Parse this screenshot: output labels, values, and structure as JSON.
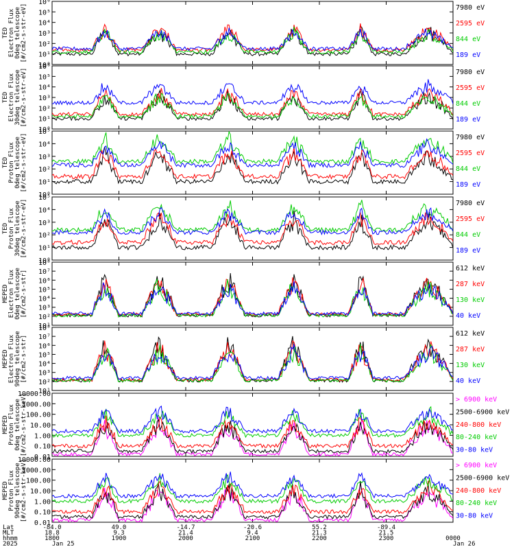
{
  "colors": {
    "blue": "#0000ff",
    "red": "#ff0000",
    "green": "#00cc00",
    "black": "#000000",
    "magenta": "#ff00ff"
  },
  "chart_data": [
    {
      "type": "line",
      "ylabel": [
        "TED",
        "Electron Flux",
        "0deg telescope",
        "[#/cm2-s-str-eV]"
      ],
      "log_y": true,
      "ylim": [
        1,
        1000000
      ],
      "tick_labels": [
        "10⁰",
        "10¹",
        "10²",
        "10³",
        "10⁴",
        "10⁵",
        "10⁶"
      ],
      "series": [
        {
          "name": "7980 eV",
          "color": "black",
          "level": 1
        },
        {
          "name": "2595 eV",
          "color": "red",
          "level": 1.4
        },
        {
          "name": "844 eV",
          "color": "green",
          "level": 1.2
        },
        {
          "name": "189 eV",
          "color": "blue",
          "level": 1.5
        }
      ]
    },
    {
      "type": "line",
      "ylabel": [
        "TED",
        "Electron Flux",
        "30deg telescope",
        "[#/cm2-s-str-eV]"
      ],
      "log_y": true,
      "ylim": [
        1,
        1000000
      ],
      "tick_labels": [
        "10⁰",
        "10¹",
        "10²",
        "10³",
        "10⁴",
        "10⁵",
        "10⁶"
      ],
      "series": [
        {
          "name": "7980 eV",
          "color": "black",
          "level": 1
        },
        {
          "name": "2595 eV",
          "color": "red",
          "level": 1.4
        },
        {
          "name": "844 eV",
          "color": "green",
          "level": 1.2
        },
        {
          "name": "189 eV",
          "color": "blue",
          "level": 2.5
        }
      ]
    },
    {
      "type": "line",
      "ylabel": [
        "TED",
        "Proton Flux",
        "0deg telescope",
        "[#/cm2-s-str-eV]"
      ],
      "log_y": true,
      "ylim": [
        1,
        100000
      ],
      "tick_labels": [
        "10⁰",
        "10¹",
        "10²",
        "10³",
        "10⁴",
        "10⁵"
      ],
      "series": [
        {
          "name": "7980 eV",
          "color": "black",
          "level": 1
        },
        {
          "name": "2595 eV",
          "color": "red",
          "level": 1.4
        },
        {
          "name": "844 eV",
          "color": "green",
          "level": 2.6
        },
        {
          "name": "189 eV",
          "color": "blue",
          "level": 2.3
        }
      ]
    },
    {
      "type": "line",
      "ylabel": [
        "TED",
        "Proton Flux",
        "30deg telescope",
        "[#/cm2-s-str-eV]"
      ],
      "log_y": true,
      "ylim": [
        1,
        100000
      ],
      "tick_labels": [
        "10⁰",
        "10¹",
        "10²",
        "10³",
        "10⁴",
        "10⁵"
      ],
      "series": [
        {
          "name": "7980 eV",
          "color": "black",
          "level": 1
        },
        {
          "name": "2595 eV",
          "color": "red",
          "level": 1.4
        },
        {
          "name": "844 eV",
          "color": "green",
          "level": 2.4
        },
        {
          "name": "189 eV",
          "color": "blue",
          "level": 2.2
        }
      ]
    },
    {
      "type": "line",
      "ylabel": [
        "MEPED",
        "Electron Flux",
        "0deg telescope",
        "[#/cm2-s-str]"
      ],
      "log_y": true,
      "ylim": [
        10,
        100000000
      ],
      "tick_labels": [
        "10¹",
        "10²",
        "10³",
        "10⁴",
        "10⁵",
        "10⁶",
        "10⁷",
        "10⁸"
      ],
      "series": [
        {
          "name": "612 keV",
          "color": "black",
          "level": 2.1
        },
        {
          "name": "287 keV",
          "color": "red",
          "level": 2.2
        },
        {
          "name": "130 keV",
          "color": "green",
          "level": 2.1
        },
        {
          "name": "40 keV",
          "color": "blue",
          "level": 2.3
        }
      ]
    },
    {
      "type": "line",
      "ylabel": [
        "MEPED",
        "Electron Flux",
        "90deg telescope",
        "[#/cm2-s-str]"
      ],
      "log_y": true,
      "ylim": [
        10,
        100000000
      ],
      "tick_labels": [
        "10¹",
        "10²",
        "10³",
        "10⁴",
        "10⁵",
        "10⁶",
        "10⁷",
        "10⁸"
      ],
      "series": [
        {
          "name": "612 keV",
          "color": "black",
          "level": 2.1
        },
        {
          "name": "287 keV",
          "color": "red",
          "level": 2.2
        },
        {
          "name": "130 keV",
          "color": "green",
          "level": 2.1
        },
        {
          "name": "40 keV",
          "color": "blue",
          "level": 2.4
        }
      ]
    },
    {
      "type": "line",
      "ylabel": [
        "MEPED",
        "Proton Flux",
        "0deg telescope",
        "[#/cm2-s-str-keV]"
      ],
      "log_y": true,
      "ylim": [
        0.01,
        10000
      ],
      "tick_labels": [
        "0.01",
        "0.10",
        "1.00",
        "10.00",
        "100.00",
        "1000.00",
        "10000.00"
      ],
      "series": [
        {
          "name": "> 6900 keV",
          "color": "magenta",
          "level": -1.8
        },
        {
          "name": "2500-6900 keV",
          "color": "black",
          "level": -1.5
        },
        {
          "name": "240-800 keV",
          "color": "red",
          "level": -1
        },
        {
          "name": "80-240 keV",
          "color": "green",
          "level": 0
        },
        {
          "name": "30-80 keV",
          "color": "blue",
          "level": 0.4
        }
      ]
    },
    {
      "type": "line",
      "ylabel": [
        "MEPED",
        "Proton Flux",
        "90deg telescope",
        "[#/cm2-s-str-keV]"
      ],
      "log_y": true,
      "ylim": [
        0.01,
        10000
      ],
      "tick_labels": [
        "0.01",
        "0.10",
        "1.00",
        "10.00",
        "100.00",
        "1000.00",
        "10000.00"
      ],
      "series": [
        {
          "name": "> 6900 keV",
          "color": "magenta",
          "level": -1.8
        },
        {
          "name": "2500-6900 keV",
          "color": "black",
          "level": -1.5
        },
        {
          "name": "240-800 keV",
          "color": "red",
          "level": -1
        },
        {
          "name": "80-240 keV",
          "color": "green",
          "level": 0
        },
        {
          "name": "30-80 keV",
          "color": "blue",
          "level": 0.5
        }
      ]
    }
  ],
  "xaxis": {
    "row_labels": [
      "Lat",
      "MLT",
      "hhmm",
      "2025"
    ],
    "ticks": [
      {
        "lat": "-84.0",
        "mlt": "18.8",
        "hhmm": "1800",
        "date": "Jan 25"
      },
      {
        "lat": "49.0",
        "mlt": "9.3",
        "hhmm": "1900",
        "date": ""
      },
      {
        "lat": "-14.7",
        "mlt": "21.4",
        "hhmm": "2000",
        "date": ""
      },
      {
        "lat": "-20.6",
        "mlt": "9.4",
        "hhmm": "2100",
        "date": ""
      },
      {
        "lat": "55.2",
        "mlt": "21.3",
        "hhmm": "2200",
        "date": ""
      },
      {
        "lat": "-89.4",
        "mlt": "21.5",
        "hhmm": "2300",
        "date": ""
      },
      {
        "lat": "",
        "mlt": "",
        "hhmm": "0000",
        "date": "Jan 26"
      }
    ]
  }
}
